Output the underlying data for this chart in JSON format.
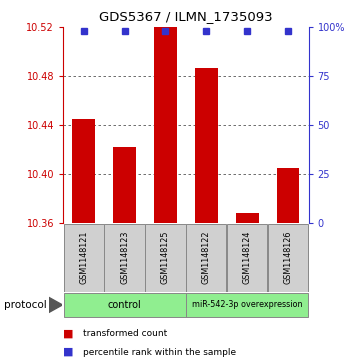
{
  "title": "GDS5367 / ILMN_1735093",
  "samples": [
    "GSM1148121",
    "GSM1148123",
    "GSM1148125",
    "GSM1148122",
    "GSM1148124",
    "GSM1148126"
  ],
  "bar_values": [
    10.445,
    10.422,
    10.521,
    10.487,
    10.368,
    10.405
  ],
  "percentile_values": [
    98,
    98,
    98,
    98,
    98,
    98
  ],
  "ylim": [
    10.36,
    10.52
  ],
  "yticks": [
    10.36,
    10.4,
    10.44,
    10.48,
    10.52
  ],
  "right_yticks": [
    0,
    25,
    50,
    75,
    100
  ],
  "bar_color": "#cc0000",
  "dot_color": "#3333cc",
  "grid_color": "#555555",
  "bg_color": "#ffffff",
  "legend_bar_label": "transformed count",
  "legend_dot_label": "percentile rank within the sample",
  "protocol_label": "protocol",
  "left_axis_color": "#cc0000",
  "right_axis_color": "#3333cc",
  "control_color": "#90ee90",
  "control_label": "control",
  "overexp_label": "miR-542-3p overexpression",
  "sample_box_color": "#d0d0d0",
  "sample_box_edge": "#888888"
}
